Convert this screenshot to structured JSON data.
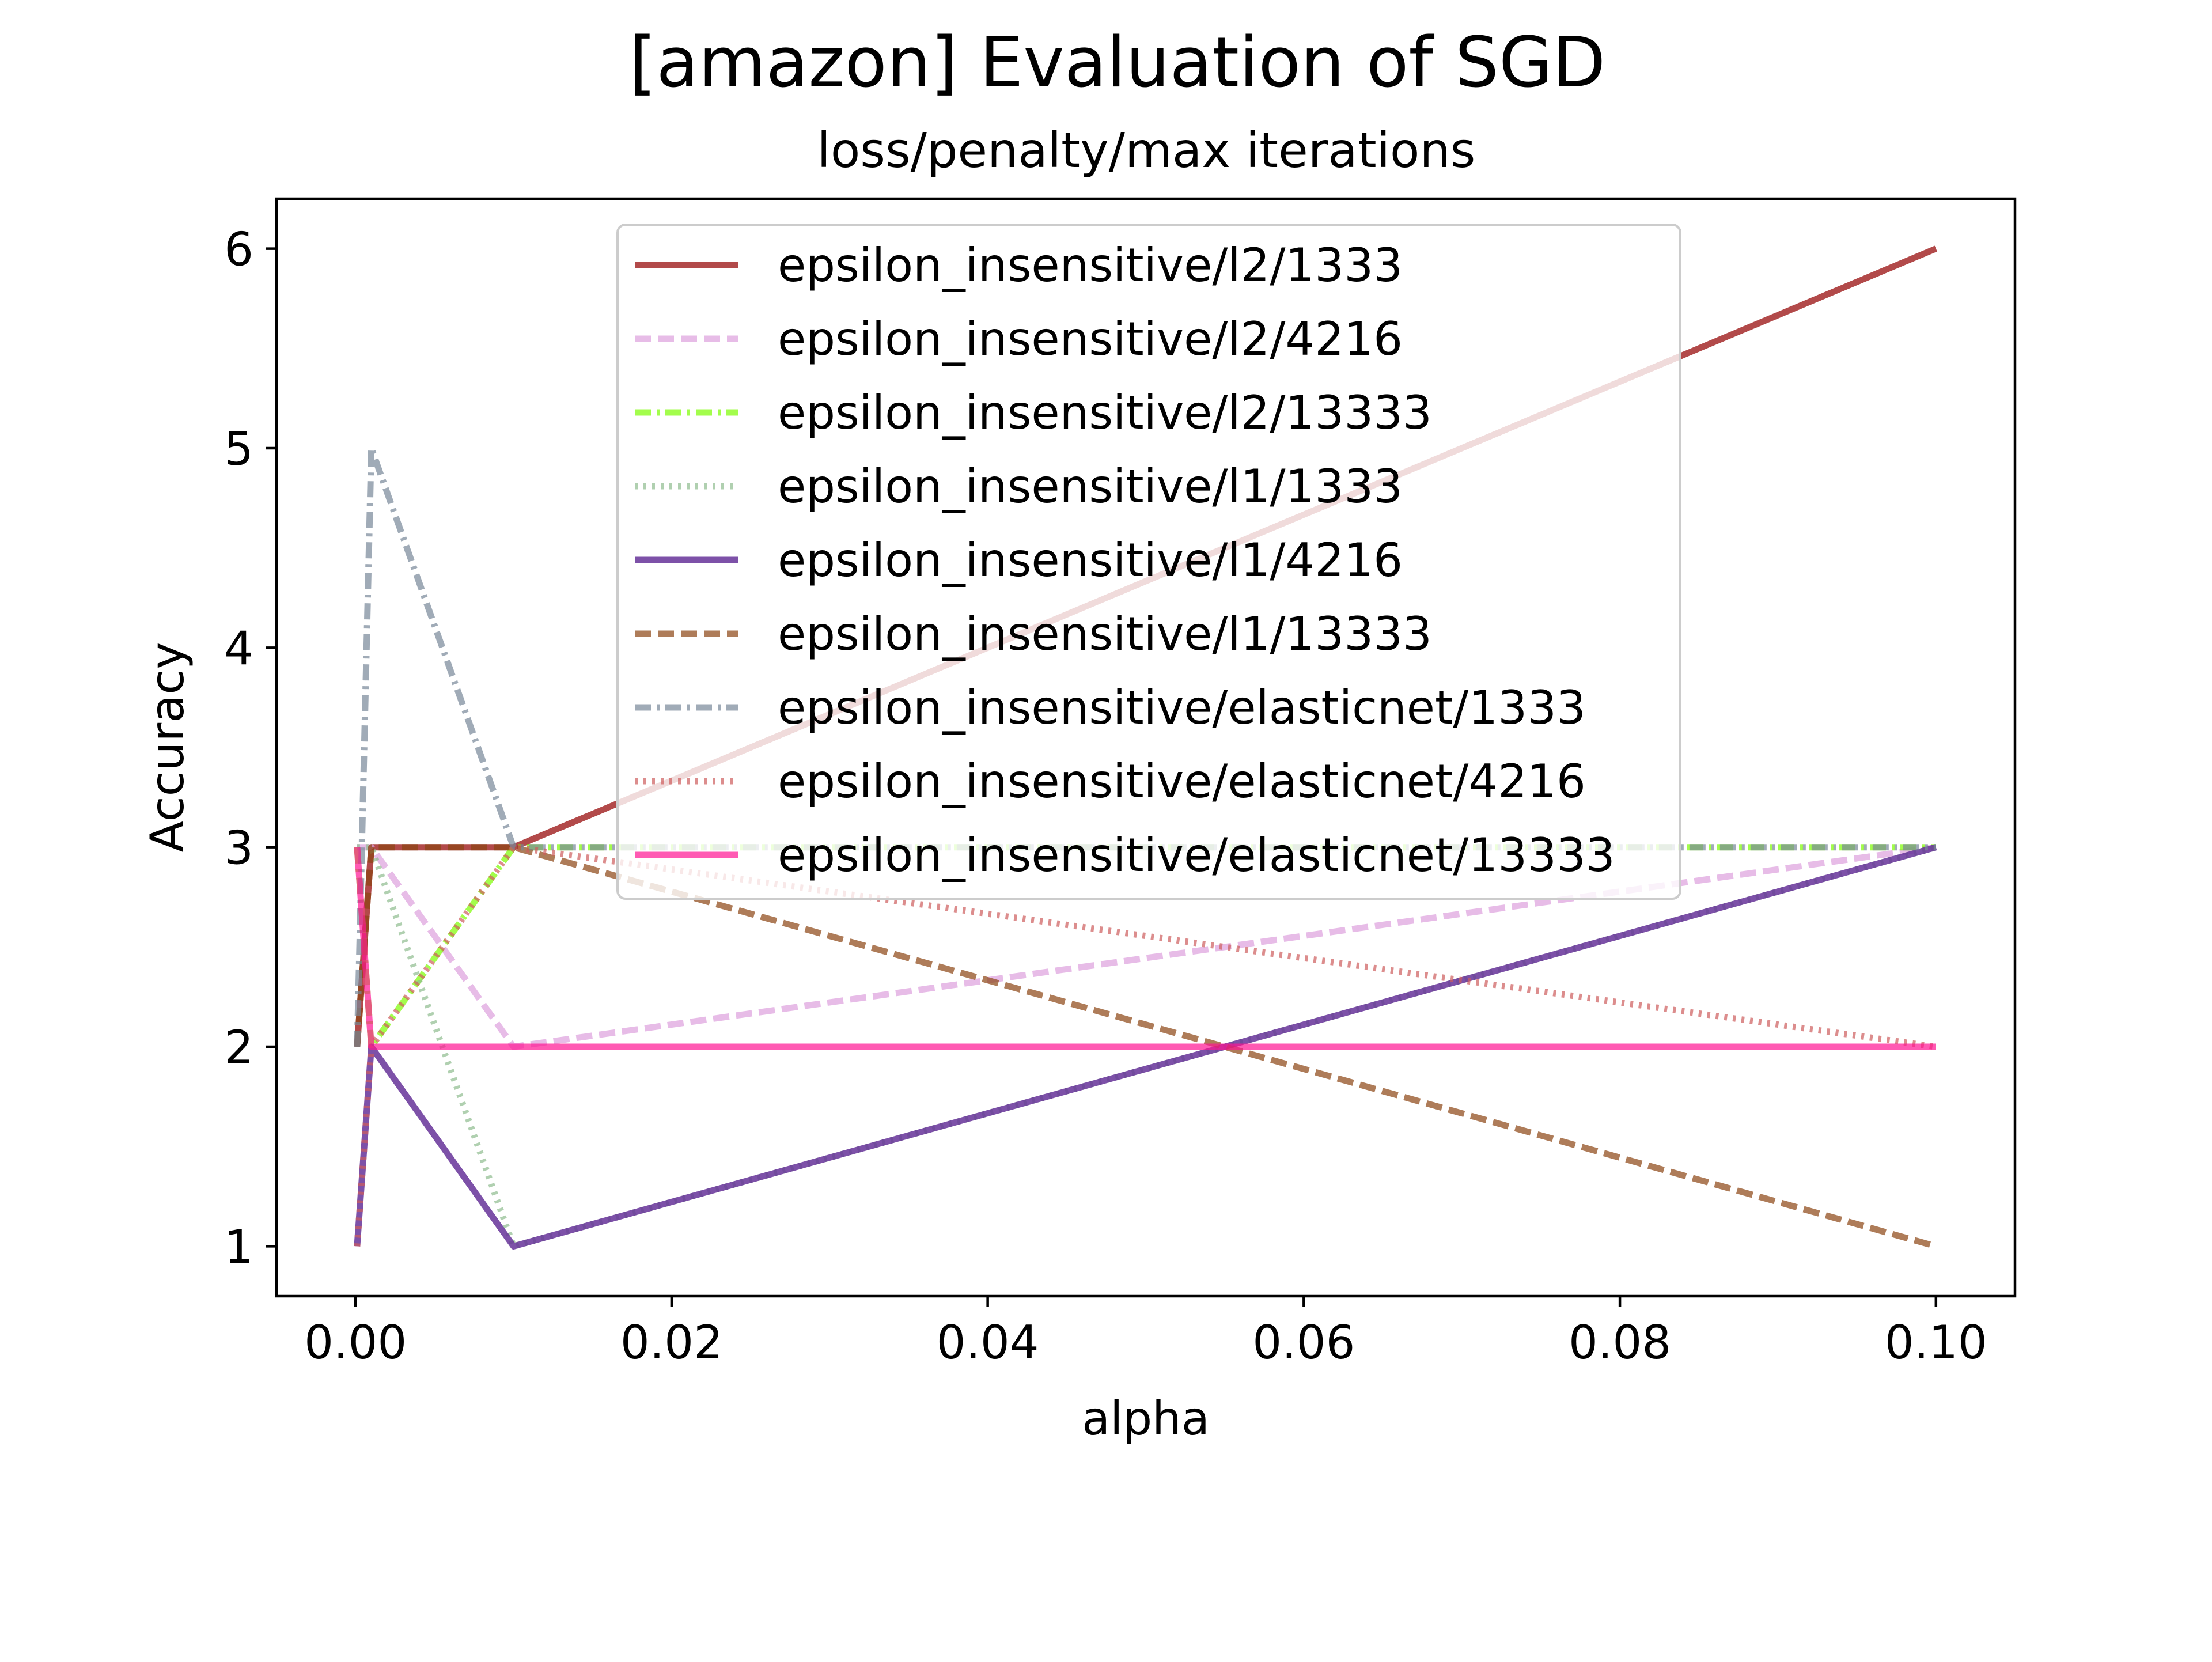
{
  "chart_data": {
    "type": "line",
    "title": "[amazon] Evaluation of SGD",
    "subtitle": "loss/penalty/max iterations",
    "xlabel": "alpha",
    "ylabel": "Accuracy",
    "xlim": [
      -0.005,
      0.105
    ],
    "ylim": [
      0.75,
      6.25
    ],
    "xticks": [
      0.0,
      0.02,
      0.04,
      0.06,
      0.08,
      0.1
    ],
    "xtick_labels": [
      "0.00",
      "0.02",
      "0.04",
      "0.06",
      "0.08",
      "0.10"
    ],
    "yticks": [
      1,
      2,
      3,
      4,
      5,
      6
    ],
    "ytick_labels": [
      "1",
      "2",
      "3",
      "4",
      "5",
      "6"
    ],
    "grid": false,
    "legend_position": "top-center",
    "x": [
      0.0001,
      0.001,
      0.01,
      0.1
    ],
    "series": [
      {
        "name": "epsilon_insensitive/l2/1333",
        "values": [
          2,
          3,
          3,
          6
        ],
        "color": "#a52a2a",
        "dash": "solid",
        "opacity": 0.85
      },
      {
        "name": "epsilon_insensitive/l2/4216",
        "values": [
          3,
          3,
          2,
          3
        ],
        "color": "#dda0dd",
        "dash": "dashed",
        "opacity": 0.7
      },
      {
        "name": "epsilon_insensitive/l2/13333",
        "values": [
          3,
          2,
          3,
          3
        ],
        "color": "#7cfc00",
        "dash": "dashdot",
        "opacity": 0.7
      },
      {
        "name": "epsilon_insensitive/l1/1333",
        "values": [
          3,
          3,
          1,
          3
        ],
        "color": "#8fbc8f",
        "dash": "dotted",
        "opacity": 0.7
      },
      {
        "name": "epsilon_insensitive/l1/4216",
        "values": [
          1,
          2,
          1,
          3
        ],
        "color": "#663399",
        "dash": "solid",
        "opacity": 0.85
      },
      {
        "name": "epsilon_insensitive/l1/13333",
        "values": [
          2,
          3,
          3,
          1
        ],
        "color": "#8b4513",
        "dash": "dashed",
        "opacity": 0.7
      },
      {
        "name": "epsilon_insensitive/elasticnet/1333",
        "values": [
          2,
          5,
          3,
          3
        ],
        "color": "#778899",
        "dash": "dashdot",
        "opacity": 0.7
      },
      {
        "name": "epsilon_insensitive/elasticnet/4216",
        "values": [
          1,
          2,
          3,
          2
        ],
        "color": "#cd5c5c",
        "dash": "dotted",
        "opacity": 0.7
      },
      {
        "name": "epsilon_insensitive/elasticnet/13333",
        "values": [
          3,
          2,
          2,
          2
        ],
        "color": "#ff1493",
        "dash": "solid",
        "opacity": 0.7
      }
    ]
  }
}
